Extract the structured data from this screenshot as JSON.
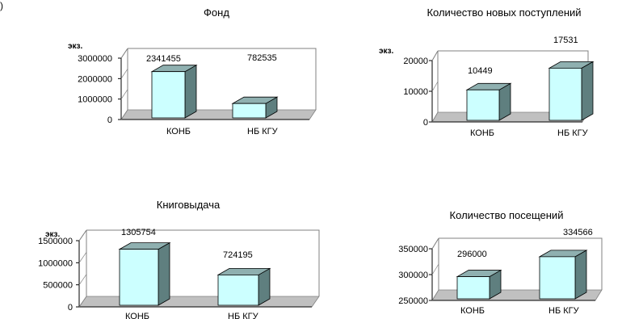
{
  "corner_mark": ")",
  "colors": {
    "bar_front": "#CCFFFF",
    "bar_side": "#5F7F7F",
    "bar_top": "#8FB0B0",
    "floor": "#C0C0C0",
    "frame": "#808080"
  },
  "chart_data": [
    {
      "type": "bar",
      "title": "Фонд",
      "ylabel": "экз.",
      "categories": [
        "КОНБ",
        "НБ КГУ"
      ],
      "values": [
        2341455,
        782535
      ],
      "value_labels": [
        "2341455",
        "782535"
      ],
      "yticks": [
        0,
        1000000,
        2000000,
        3000000
      ],
      "ytick_labels": [
        "0",
        "1000000",
        "2000000",
        "3000000"
      ],
      "ylim": [
        0,
        3000000
      ],
      "grid": false,
      "legend": "none"
    },
    {
      "type": "bar",
      "title": "Количество новых поступлений",
      "ylabel": "экз.",
      "categories": [
        "КОНБ",
        "НБ КГУ"
      ],
      "values": [
        10449,
        17531
      ],
      "value_labels": [
        "10449",
        "17531"
      ],
      "yticks": [
        0,
        10000,
        20000
      ],
      "ytick_labels": [
        "0",
        "10000",
        "20000"
      ],
      "ylim": [
        0,
        20000
      ],
      "grid": false,
      "legend": "none"
    },
    {
      "type": "bar",
      "title": "Книговыдача",
      "ylabel": "экз.",
      "categories": [
        "КОНБ",
        "НБ КГУ"
      ],
      "values": [
        1305754,
        724195
      ],
      "value_labels": [
        "1305754",
        "724195"
      ],
      "yticks": [
        0,
        500000,
        1000000,
        1500000
      ],
      "ytick_labels": [
        "0",
        "500000",
        "1000000",
        "1500000"
      ],
      "ylim": [
        0,
        1500000
      ],
      "grid": false,
      "legend": "none"
    },
    {
      "type": "bar",
      "title": "Количество посещений",
      "ylabel": "",
      "categories": [
        "КОНБ",
        "НБ КГУ"
      ],
      "values": [
        296000,
        334566
      ],
      "value_labels": [
        "296000",
        "334566"
      ],
      "yticks": [
        250000,
        300000,
        350000
      ],
      "ytick_labels": [
        "250000",
        "300000",
        "350000"
      ],
      "ylim": [
        250000,
        350000
      ],
      "grid": false,
      "legend": "none"
    }
  ]
}
